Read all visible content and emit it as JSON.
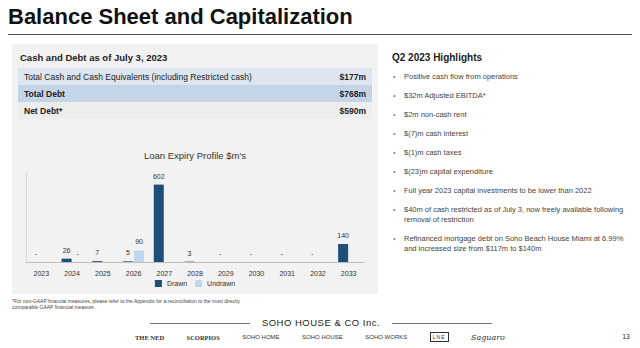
{
  "title": "Balance Sheet and Capitalization",
  "cash_debt": {
    "title": "Cash and Debt as of July 3, 2023",
    "rows": [
      [
        "Total Cash and Cash Equivalents (including Restricted cash)",
        "$177m"
      ],
      [
        "Total Debt",
        "$768m"
      ],
      [
        "Net Debt*",
        "$590m"
      ]
    ]
  },
  "chart_data": {
    "type": "bar",
    "title": "Loan Expiry Profile $m's",
    "categories": [
      "2023",
      "2024",
      "2025",
      "2026",
      "2027",
      "2028",
      "2029",
      "2030",
      "2031",
      "2032",
      "2033"
    ],
    "series": [
      {
        "name": "Drawn",
        "color": "#1f4e79",
        "values": [
          0,
          26,
          7,
          5,
          602,
          3,
          0,
          0,
          0,
          0,
          140
        ],
        "value_labels": [
          "-",
          "26",
          "7",
          "5",
          "602",
          "3",
          "-",
          "-",
          "-",
          "-",
          "140"
        ]
      },
      {
        "name": "Undrawn",
        "color": "#bdd7ee",
        "values": [
          null,
          0,
          null,
          90,
          null,
          null,
          null,
          null,
          null,
          null,
          null
        ],
        "value_labels": [
          null,
          "-",
          null,
          "90",
          null,
          null,
          null,
          null,
          null,
          null,
          null
        ]
      }
    ],
    "ylim": [
      0,
      700
    ],
    "grid": false,
    "legend": "bottom",
    "data_labels": true,
    "tick_labels": "x"
  },
  "highlights": {
    "title": "Q2 2023 Highlights",
    "items": [
      "Positive cash flow from operations",
      "$32m Adjusted EBITDA*",
      "$2m non-cash rent",
      "$(7)m cash interest",
      "$(1)m cash taxes",
      "$(23)m capital expenditure",
      "Full year 2023 capital investments to be lower than 2022",
      "$40m of cash restricted as of July 3, now freely available following removal of restriction",
      "Refinanced mortgage debt on Soho Beach House Miami at 6.99% and increased size from $117m to $140m"
    ]
  },
  "footnote": "*For non-GAAP financial measures, please refer to the Appendix for a reconciliation to the most directly comparable GAAP financial measure.",
  "footer": {
    "company": "SOHO HOUSE & CO Inc.",
    "brands": [
      "THE NED",
      "SCORPIOS",
      "SOHO HOME",
      "SOHO HOUSE",
      "SOHO WORKS",
      "LNE",
      "Saguaro"
    ],
    "page": "13"
  }
}
